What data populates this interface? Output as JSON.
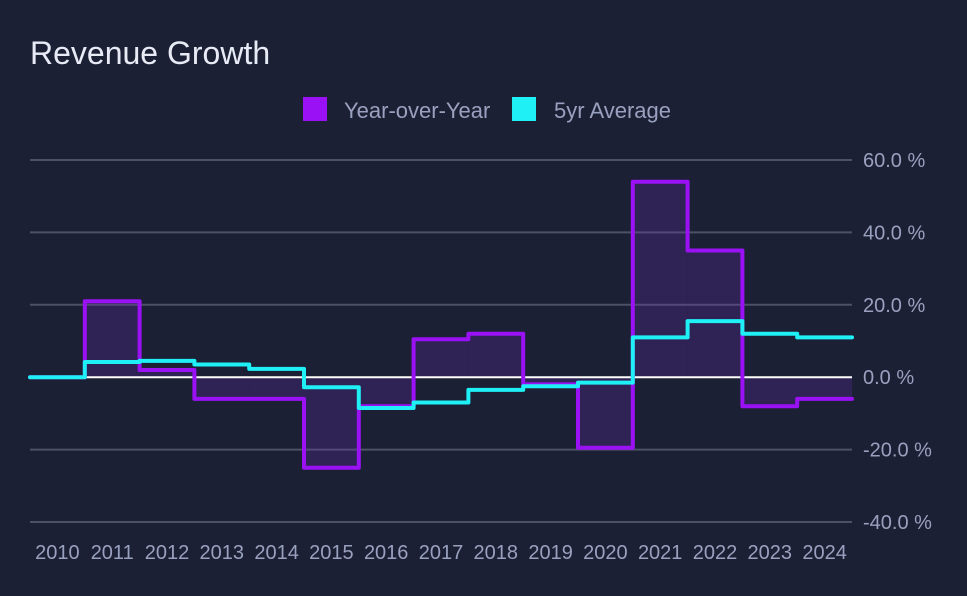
{
  "colors": {
    "background": "#1b2034",
    "grid": "#4c5166",
    "zero_line": "#ffffff",
    "yoy": "#9b11f5",
    "yoy_fill": "rgba(120, 40, 200, 0.22)",
    "avg": "#1ef0f5",
    "text": "#9aa1bf",
    "title": "#e8ebf6"
  },
  "chart_data": {
    "type": "line",
    "title": "Revenue Growth",
    "xlabel": "",
    "ylabel": "",
    "step": true,
    "categories": [
      "2010",
      "2011",
      "2012",
      "2013",
      "2014",
      "2015",
      "2016",
      "2017",
      "2018",
      "2019",
      "2020",
      "2021",
      "2022",
      "2023",
      "2024"
    ],
    "series": [
      {
        "name": "Year-over-Year",
        "color": "#9b11f5",
        "fill": true,
        "values": [
          0,
          21,
          2,
          -6,
          -6,
          -25,
          -8,
          10.5,
          12,
          -2,
          -19.5,
          54,
          35,
          -8,
          -6
        ]
      },
      {
        "name": "5yr Average",
        "color": "#1ef0f5",
        "fill": false,
        "values": [
          0,
          4.2,
          4.5,
          3.5,
          2.3,
          -2.8,
          -8.5,
          -7,
          -3.5,
          -2.5,
          -1.5,
          11,
          15.5,
          12,
          11
        ]
      }
    ],
    "ylim": [
      -40,
      60
    ],
    "yticks": [
      {
        "value": 60,
        "label": "60.0 %"
      },
      {
        "value": 40,
        "label": "40.0 %"
      },
      {
        "value": 20,
        "label": "20.0 %"
      },
      {
        "value": 0,
        "label": "0.0 %"
      },
      {
        "value": -20,
        "label": "-20.0 %"
      },
      {
        "value": -40,
        "label": "-40.0 %"
      }
    ],
    "y_axis_side": "right",
    "grid": true,
    "legend_position": "top-center"
  }
}
